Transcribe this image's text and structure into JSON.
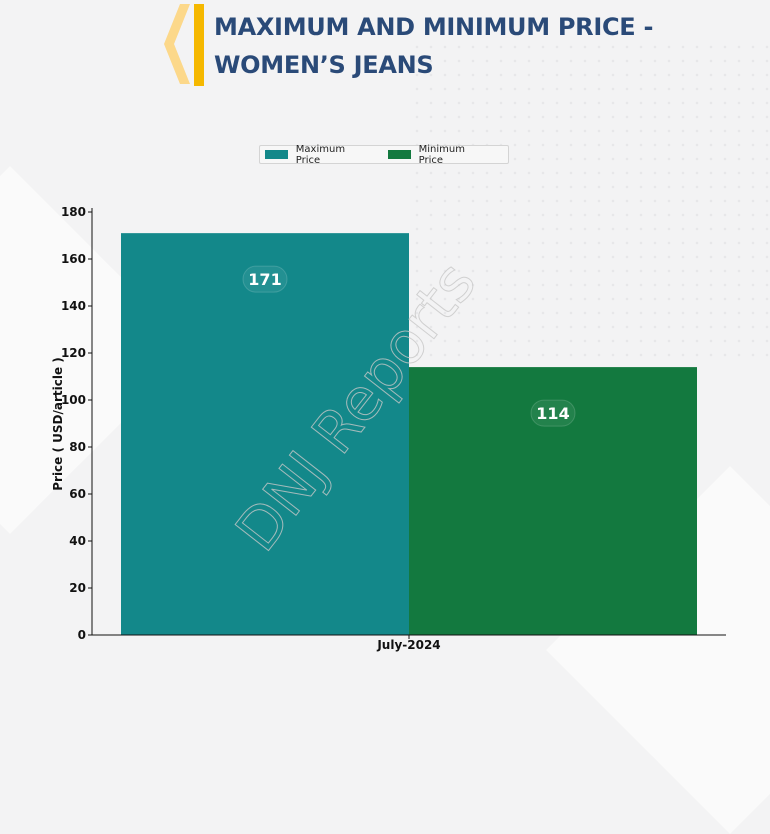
{
  "header": {
    "title_line1": "MAXIMUM AND MINIMUM PRICE -",
    "title_line2": "WOMEN’S JEANS"
  },
  "watermark": "DNJ Reports",
  "colors": {
    "title": "#2a4a78",
    "chevron_accent": "#f5b800",
    "chevron_light": "#fcd88a",
    "max_price": "#13888a",
    "min_price": "#13793f"
  },
  "chart_data": {
    "type": "bar",
    "categories": [
      "July-2024"
    ],
    "series": [
      {
        "name": "Maximum Price",
        "values": [
          171
        ],
        "color": "#13888a"
      },
      {
        "name": "Minimum Price",
        "values": [
          114
        ],
        "color": "#13793f"
      }
    ],
    "xlabel": "",
    "ylabel": "Price ( USD/article )",
    "ylim": [
      0,
      180
    ],
    "yticks": [
      0,
      20,
      40,
      60,
      80,
      100,
      120,
      140,
      160,
      180
    ],
    "data_labels": [
      "171",
      "114"
    ],
    "grid": false,
    "legend_position": "top-center"
  }
}
